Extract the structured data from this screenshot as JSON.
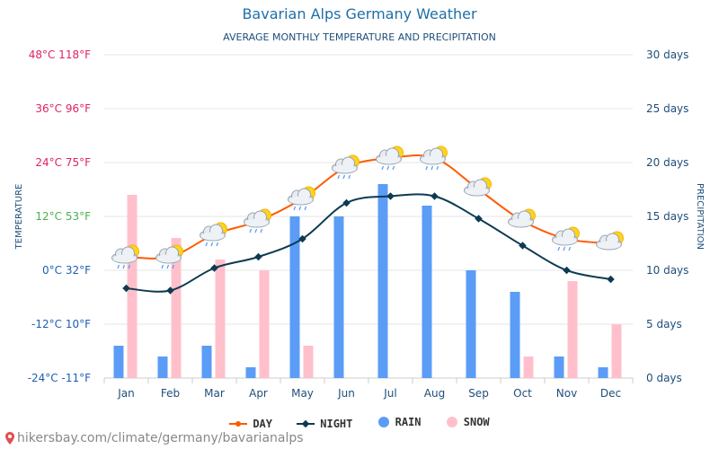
{
  "chart_data": {
    "type": "bar+line",
    "title": "Bavarian Alps Germany Weather",
    "subtitle": "AVERAGE MONTHLY TEMPERATURE AND PRECIPITATION",
    "categories": [
      "Jan",
      "Feb",
      "Mar",
      "Apr",
      "May",
      "Jun",
      "Jul",
      "Aug",
      "Sep",
      "Oct",
      "Nov",
      "Dec"
    ],
    "ylabel_left": "TEMPERATURE",
    "ylabel_right": "PRECIPITATION",
    "left_axis": {
      "unit": "°C",
      "range": [
        -24,
        48
      ],
      "ticks": [
        {
          "value": 48,
          "label": "48°C 118°F",
          "color": "#e0245e"
        },
        {
          "value": 36,
          "label": "36°C 96°F",
          "color": "#e0245e"
        },
        {
          "value": 24,
          "label": "24°C 75°F",
          "color": "#e0245e"
        },
        {
          "value": 12,
          "label": "12°C 53°F",
          "color": "#4caf50"
        },
        {
          "value": 0,
          "label": "0°C 32°F",
          "color": "#1e5fb4"
        },
        {
          "value": -12,
          "label": "-12°C 10°F",
          "color": "#1e5fb4"
        },
        {
          "value": -24,
          "label": "-24°C -11°F",
          "color": "#1e5fb4"
        }
      ]
    },
    "right_axis": {
      "unit": "days",
      "range": [
        0,
        30
      ],
      "ticks": [
        {
          "value": 30,
          "label": "30 days"
        },
        {
          "value": 25,
          "label": "25 days"
        },
        {
          "value": 20,
          "label": "20 days"
        },
        {
          "value": 15,
          "label": "15 days"
        },
        {
          "value": 10,
          "label": "10 days"
        },
        {
          "value": 5,
          "label": "5 days"
        },
        {
          "value": 0,
          "label": "0 days"
        }
      ]
    },
    "series": [
      {
        "name": "DAY",
        "type": "line",
        "axis": "left",
        "color": "#ff5a00",
        "values": [
          3,
          3,
          8,
          11,
          16,
          23,
          25,
          25,
          18,
          11,
          7,
          6
        ]
      },
      {
        "name": "NIGHT",
        "type": "line",
        "axis": "left",
        "color": "#0d3a52",
        "values": [
          -4,
          -4.5,
          0.5,
          3,
          7,
          15,
          16.5,
          16.5,
          11.5,
          5.5,
          0,
          -2
        ]
      },
      {
        "name": "RAIN",
        "type": "bar",
        "axis": "right",
        "color": "#5b9cf6",
        "values": [
          3,
          2,
          3,
          1,
          15,
          15,
          18,
          16,
          10,
          8,
          2,
          1
        ]
      },
      {
        "name": "SNOW",
        "type": "bar",
        "axis": "right",
        "color": "#ffc0cb",
        "values": [
          17,
          13,
          11,
          10,
          3,
          0,
          0,
          0,
          0,
          2,
          9,
          5
        ]
      }
    ],
    "grid": true,
    "legend": "bottom-center"
  },
  "weather_icons": [
    "cloud-sun-rain-icon",
    "cloud-sun-rain-icon",
    "cloud-sun-rain-icon",
    "cloud-sun-rain-icon",
    "cloud-sun-rain-icon",
    "cloud-sun-rain-icon",
    "cloud-sun-rain-icon",
    "cloud-sun-rain-icon",
    "cloud-sun-icon",
    "cloud-sun-icon",
    "cloud-sun-rain-icon",
    "cloud-sun-icon"
  ],
  "legend_items": [
    "DAY",
    "NIGHT",
    "RAIN",
    "SNOW"
  ],
  "footer": {
    "text": "hikersbay.com/climate/germany/bavarianalps",
    "icon": "map-pin-icon",
    "icon_color": "#e05050"
  }
}
